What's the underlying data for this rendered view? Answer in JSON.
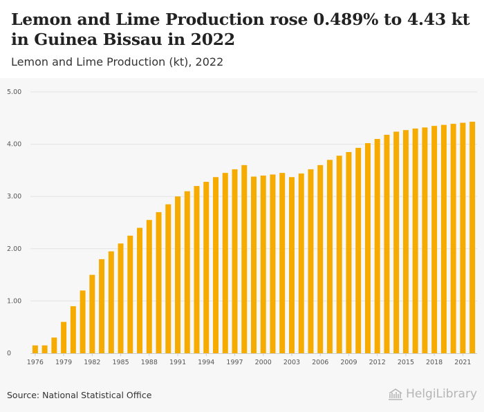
{
  "header": {
    "title": "Lemon and Lime Production rose 0.489% to 4.43 kt in Guinea Bissau in 2022",
    "subtitle": "Lemon and Lime Production (kt), 2022"
  },
  "footer": {
    "source": "Source: National Statistical Office",
    "brand": "HelgiLibrary"
  },
  "colors": {
    "bar": "#f5ab00",
    "grid": "#e3e3e3"
  },
  "chart_data": {
    "type": "bar",
    "title": "Lemon and Lime Production rose 0.489% to 4.43 kt in Guinea Bissau in 2022",
    "subtitle": "Lemon and Lime Production (kt), 2022",
    "xlabel": "",
    "ylabel": "",
    "ylim": [
      0,
      5
    ],
    "yticks": [
      "0",
      "1.00",
      "2.00",
      "3.00",
      "4.00",
      "5.00"
    ],
    "xticks": [
      "1976",
      "1979",
      "1982",
      "1985",
      "1988",
      "1991",
      "1994",
      "1997",
      "2000",
      "2003",
      "2006",
      "2009",
      "2012",
      "2015",
      "2018",
      "2021"
    ],
    "grid": true,
    "categories": [
      "1976",
      "1977",
      "1978",
      "1979",
      "1980",
      "1981",
      "1982",
      "1983",
      "1984",
      "1985",
      "1986",
      "1987",
      "1988",
      "1989",
      "1990",
      "1991",
      "1992",
      "1993",
      "1994",
      "1995",
      "1996",
      "1997",
      "1998",
      "1999",
      "2000",
      "2001",
      "2002",
      "2003",
      "2004",
      "2005",
      "2006",
      "2007",
      "2008",
      "2009",
      "2010",
      "2011",
      "2012",
      "2013",
      "2014",
      "2015",
      "2016",
      "2017",
      "2018",
      "2019",
      "2020",
      "2021",
      "2022"
    ],
    "values": [
      0.15,
      0.15,
      0.3,
      0.6,
      0.9,
      1.2,
      1.5,
      1.8,
      1.95,
      2.1,
      2.25,
      2.4,
      2.55,
      2.7,
      2.85,
      3.0,
      3.1,
      3.2,
      3.28,
      3.37,
      3.45,
      3.52,
      3.6,
      3.38,
      3.4,
      3.42,
      3.45,
      3.37,
      3.44,
      3.52,
      3.6,
      3.7,
      3.78,
      3.85,
      3.93,
      4.02,
      4.1,
      4.18,
      4.24,
      4.27,
      4.3,
      4.32,
      4.35,
      4.37,
      4.39,
      4.41,
      4.43
    ]
  }
}
